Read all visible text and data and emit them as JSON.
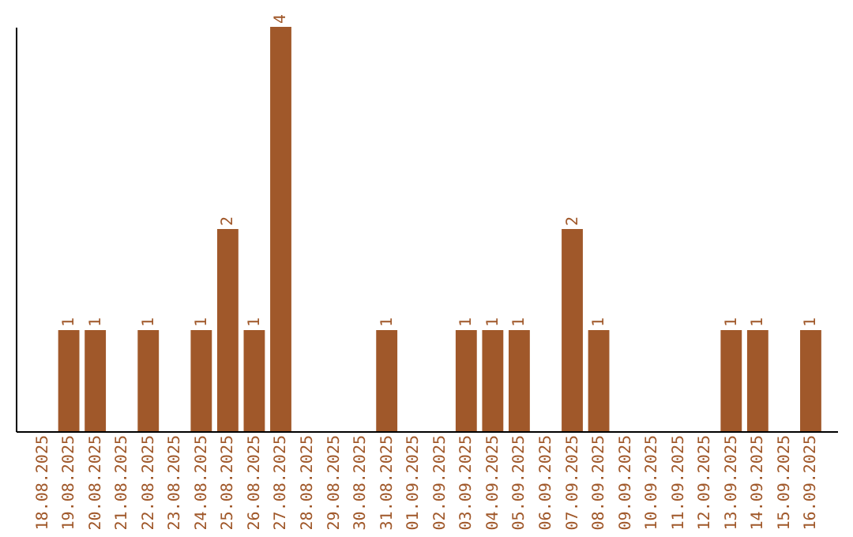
{
  "chart_data": {
    "type": "bar",
    "categories": [
      "18.08.2025",
      "19.08.2025",
      "20.08.2025",
      "21.08.2025",
      "22.08.2025",
      "23.08.2025",
      "24.08.2025",
      "25.08.2025",
      "26.08.2025",
      "27.08.2025",
      "28.08.2025",
      "29.08.2025",
      "30.08.2025",
      "31.08.2025",
      "01.09.2025",
      "02.09.2025",
      "03.09.2025",
      "04.09.2025",
      "05.09.2025",
      "06.09.2025",
      "07.09.2025",
      "08.09.2025",
      "09.09.2025",
      "10.09.2025",
      "11.09.2025",
      "12.09.2025",
      "13.09.2025",
      "14.09.2025",
      "15.09.2025",
      "16.09.2025"
    ],
    "values": [
      0,
      1,
      1,
      0,
      1,
      0,
      1,
      2,
      1,
      4,
      0,
      0,
      0,
      1,
      0,
      0,
      1,
      1,
      1,
      0,
      2,
      1,
      0,
      0,
      0,
      0,
      1,
      1,
      0,
      1
    ],
    "value_labels": [
      null,
      "1",
      "1",
      null,
      "1",
      null,
      "1",
      "2",
      "1",
      "4",
      null,
      null,
      null,
      "1",
      null,
      null,
      "1",
      "1",
      "1",
      null,
      "2",
      "1",
      null,
      null,
      null,
      null,
      "1",
      "1",
      null,
      "1"
    ],
    "color": "#a0582a",
    "ylim": [
      0,
      4
    ],
    "tick_labels": "x",
    "grid": false
  }
}
